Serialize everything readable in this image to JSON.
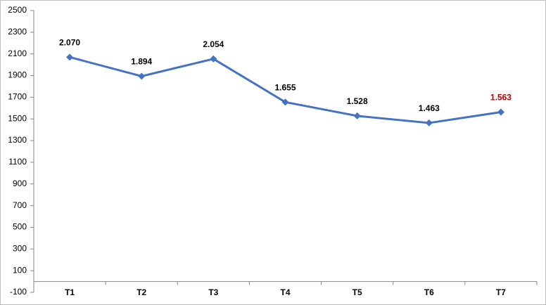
{
  "chart_data": {
    "type": "line",
    "categories": [
      "T1",
      "T2",
      "T3",
      "T4",
      "T5",
      "T6",
      "T7"
    ],
    "series": [
      {
        "color": "#4472c4",
        "values": [
          2070,
          1894,
          2054,
          1655,
          1528,
          1463,
          1563
        ],
        "value_labels": [
          "2.070",
          "1.894",
          "2.054",
          "1.655",
          "1.528",
          "1.463",
          "1.563"
        ],
        "value_label_colors": [
          "#000000",
          "#000000",
          "#000000",
          "#000000",
          "#000000",
          "#000000",
          "#c00000"
        ]
      }
    ],
    "ylim": [
      -100,
      2500
    ],
    "yticks": [
      -100,
      100,
      300,
      500,
      700,
      900,
      1100,
      1300,
      1500,
      1700,
      1900,
      2100,
      2300,
      2500
    ],
    "grid": false
  }
}
